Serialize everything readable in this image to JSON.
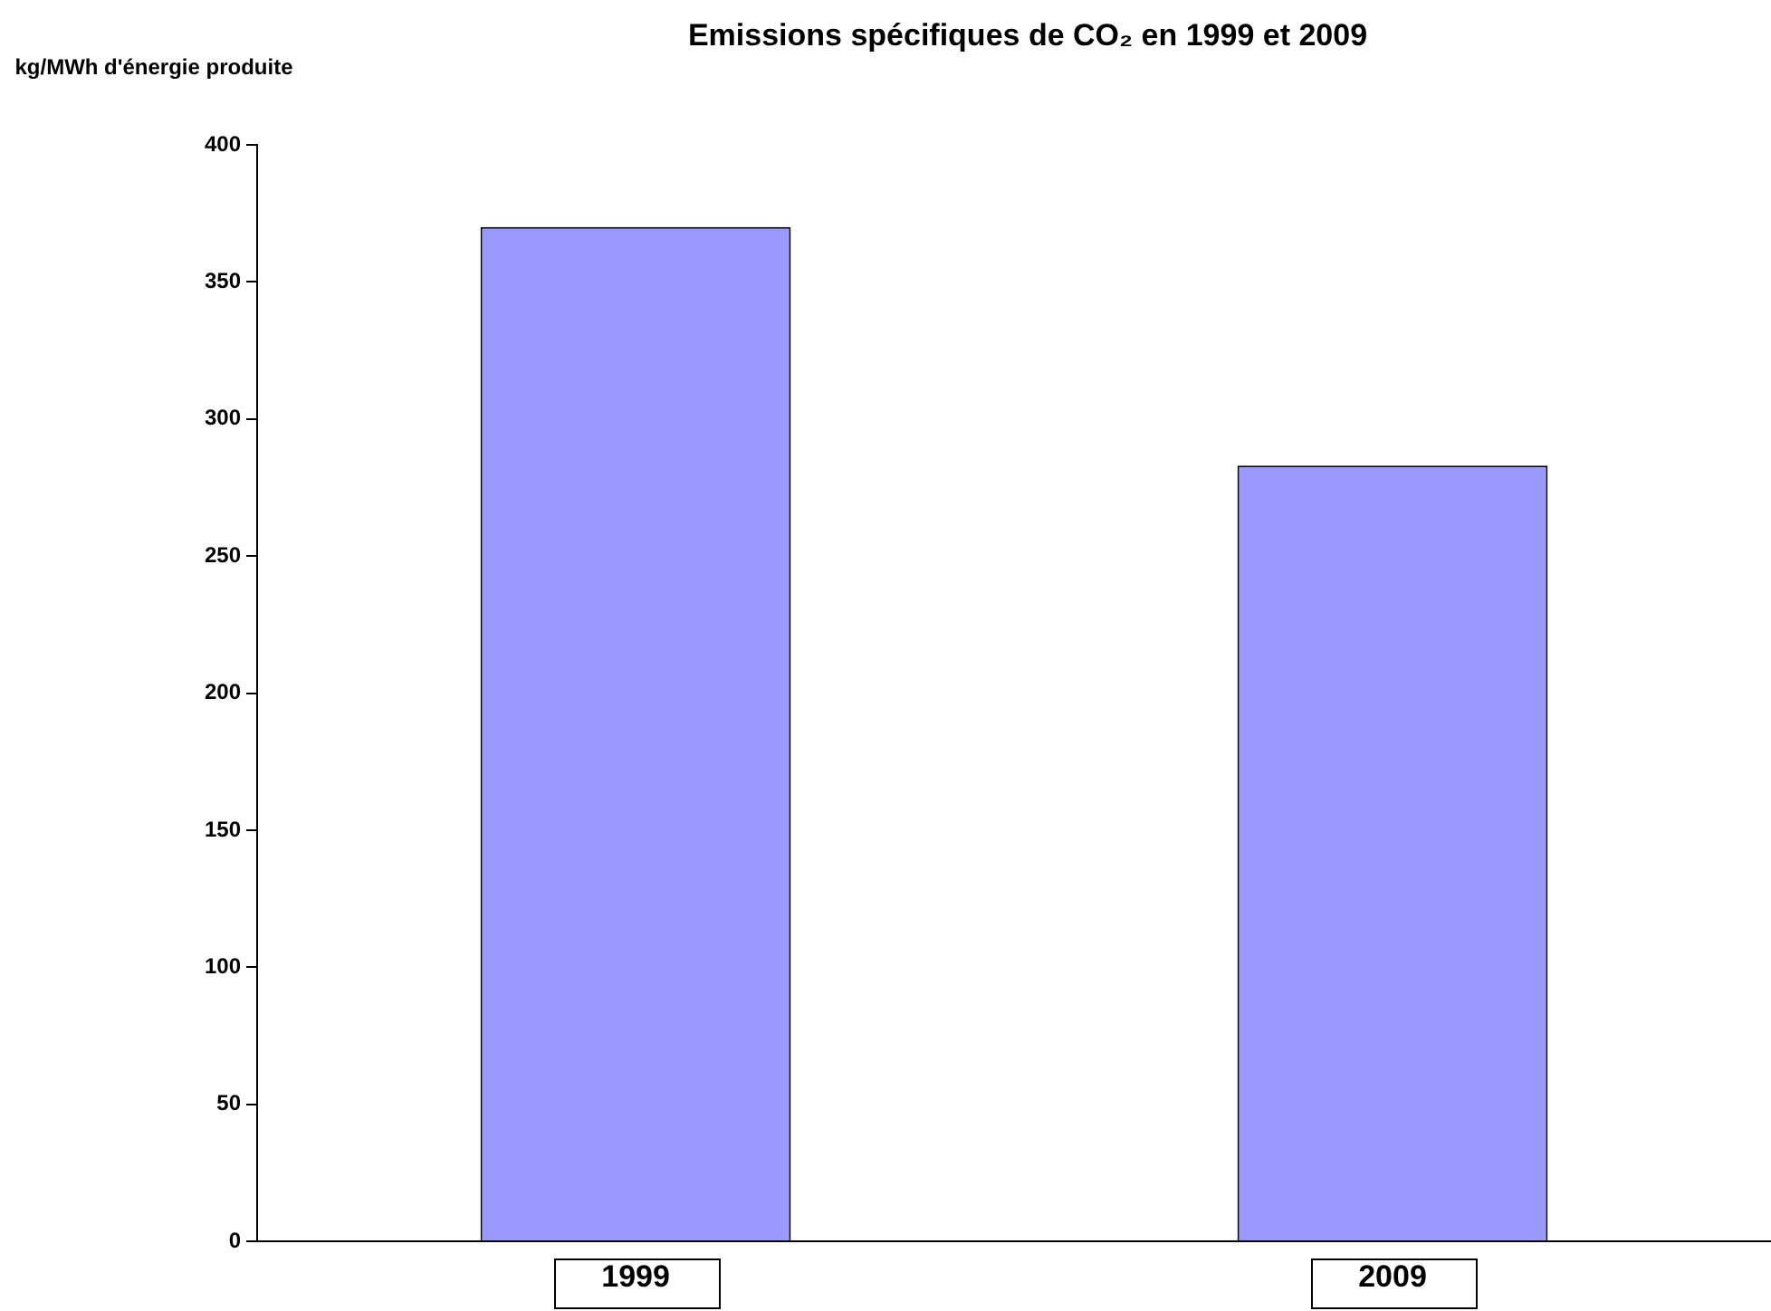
{
  "chart_data": {
    "type": "bar",
    "title": "Emissions spécifiques de CO₂ en 1999 et 2009",
    "ylabel": "kg/MWh d'énergie produite",
    "categories": [
      "1999",
      "2009"
    ],
    "values": [
      370,
      283
    ],
    "color": "#9999ff",
    "ylim": [
      0,
      400
    ],
    "yticks": [
      0,
      50,
      100,
      150,
      200,
      250,
      300,
      350,
      400
    ],
    "grid": false,
    "legend": false
  }
}
